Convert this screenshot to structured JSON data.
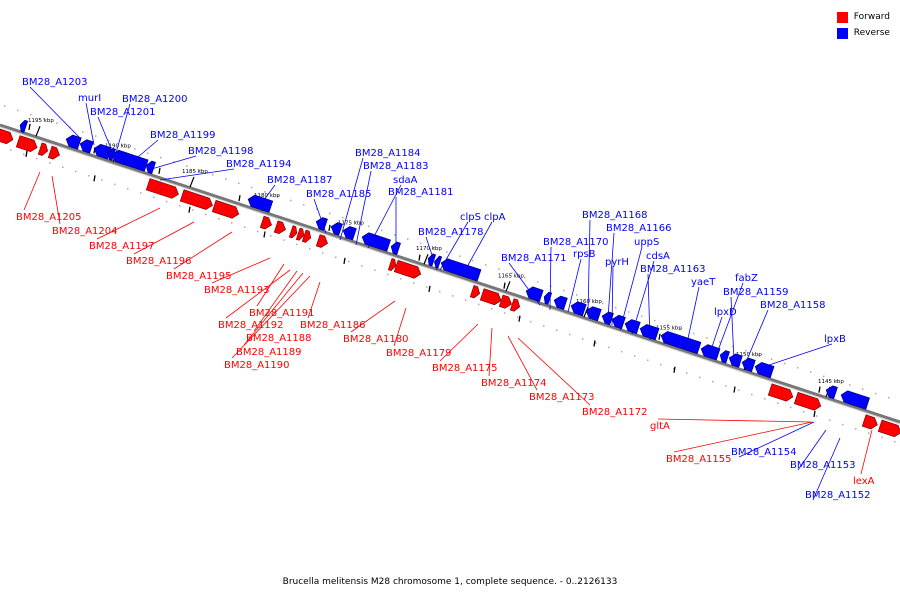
{
  "legend": {
    "forward_label": "Forward",
    "reverse_label": "Reverse",
    "forward_color": "#ff0000",
    "reverse_color": "#0000ff"
  },
  "caption": "Brucella melitensis M28 chromosome 1, complete sequence. - 0..2126133",
  "scale_ticks": [
    "1195 kbp",
    "1190 kbp",
    "1185 kbp",
    "1180 kbp",
    "1175 kbp",
    "1170 kbp",
    "1165 kbp",
    "1160 kbp",
    "1155 kbp",
    "1150 kbp",
    "1145 kbp"
  ],
  "reverse_genes": [
    "BM28_A1203",
    "murI",
    "BM28_A1201",
    "BM28_A1200",
    "BM28_A1199",
    "BM28_A1198",
    "BM28_A1194",
    "BM28_A1187",
    "BM28_A1185",
    "BM28_A1184",
    "BM28_A1183",
    "sdaA",
    "BM28_A1181",
    "BM28_A1178",
    "clpS",
    "clpA",
    "BM28_A1171",
    "BM28_A1170",
    "rpsB",
    "BM28_A1168",
    "BM28_A1166",
    "pyrH",
    "uppS",
    "cdsA",
    "BM28_A1163",
    "yaeT",
    "lpxD",
    "fabZ",
    "BM28_A1159",
    "BM28_A1158",
    "lpxB",
    "BM28_A1154",
    "BM28_A1153",
    "BM28_A1152"
  ],
  "forward_genes": [
    "BM28_A1205",
    "BM28_A1204",
    "BM28_A1197",
    "BM28_A1196",
    "BM28_A1195",
    "BM28_A1193",
    "BM28_A1191",
    "BM28_A1192",
    "BM28_A1188",
    "BM28_A1189",
    "BM28_A1190",
    "BM28_A1186",
    "BM28_A1180",
    "BM28_A1179",
    "BM28_A1175",
    "BM28_A1174",
    "BM28_A1173",
    "BM28_A1172",
    "gltA",
    "BM28_A1155",
    "lexA"
  ]
}
